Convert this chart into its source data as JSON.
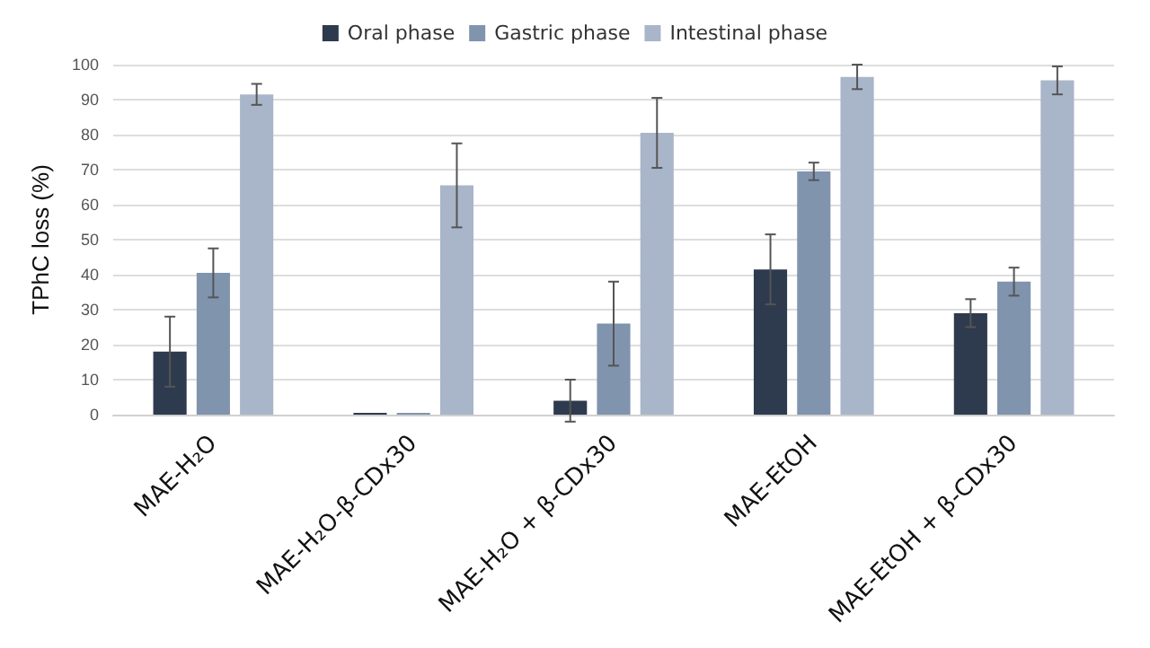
{
  "chart_data": {
    "type": "bar",
    "ylabel": "TPhC loss (%)",
    "categories": [
      "MAE-H₂O",
      "MAE-H₂O-β-CDx30",
      "MAE-H₂O + β-CDx30",
      "MAE-EtOH",
      "MAE-EtOH + β-CDx30"
    ],
    "series": [
      {
        "name": "Oral phase",
        "color": "#2e3a4e",
        "values": [
          18,
          0.5,
          4,
          41.5,
          29
        ],
        "errors": [
          10,
          null,
          6,
          10,
          4
        ]
      },
      {
        "name": "Gastric phase",
        "color": "#8094ae",
        "values": [
          40.5,
          0.5,
          26,
          69.5,
          38
        ],
        "errors": [
          7,
          null,
          12,
          2.5,
          4
        ]
      },
      {
        "name": "Intestinal phase",
        "color": "#a9b5c9",
        "values": [
          91.5,
          65.5,
          80.5,
          96.5,
          95.5
        ],
        "errors": [
          3,
          12,
          10,
          3.5,
          4
        ]
      }
    ],
    "ylim": [
      0,
      100
    ],
    "yticks": [
      0,
      10,
      20,
      30,
      40,
      50,
      60,
      70,
      80,
      90,
      100
    ],
    "grid": "y",
    "legend": "top"
  }
}
